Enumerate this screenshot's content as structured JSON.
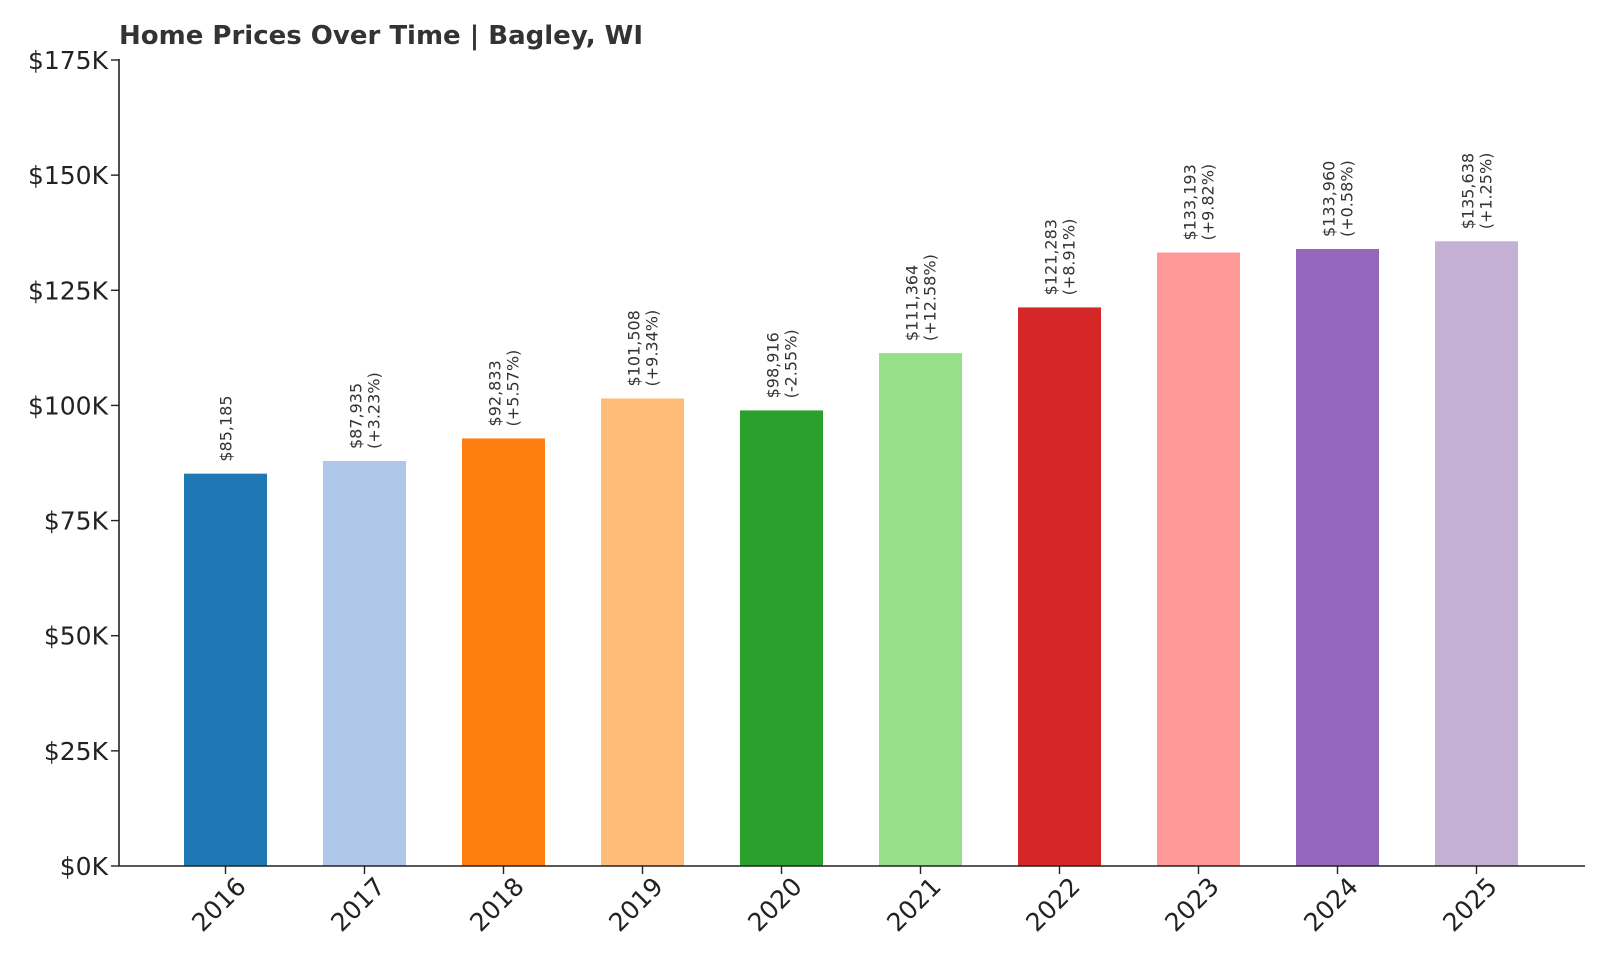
{
  "chart_data": {
    "type": "bar",
    "title": "Home Prices Over Time | Bagley, WI",
    "xlabel": "",
    "ylabel": "",
    "ylim": [
      0,
      175000
    ],
    "y_ticks": [
      0,
      25000,
      50000,
      75000,
      100000,
      125000,
      150000,
      175000
    ],
    "y_tick_labels": [
      "$0K",
      "$25K",
      "$50K",
      "$75K",
      "$100K",
      "$125K",
      "$150K",
      "$175K"
    ],
    "categories": [
      "2016",
      "2017",
      "2018",
      "2019",
      "2020",
      "2021",
      "2022",
      "2023",
      "2024",
      "2025"
    ],
    "values": [
      85185,
      87935,
      92833,
      101508,
      98916,
      111364,
      121283,
      133193,
      133960,
      135638
    ],
    "value_labels": [
      "$85,185",
      "$87,935",
      "$92,833",
      "$101,508",
      "$98,916",
      "$111,364",
      "$121,283",
      "$133,193",
      "$133,960",
      "$135,638"
    ],
    "change_labels": [
      "",
      "(+3.23%)",
      "(+5.57%)",
      "(+9.34%)",
      "(-2.55%)",
      "(+12.58%)",
      "(+8.91%)",
      "(+9.82%)",
      "(+0.58%)",
      "(+1.25%)"
    ],
    "colors": [
      "#1f77b4",
      "#aec7e8",
      "#ff7f0e",
      "#ffbb78",
      "#2ca02c",
      "#98df8a",
      "#d62728",
      "#ff9896",
      "#9467bd",
      "#c5b0d5"
    ],
    "grid": false,
    "legend": "none"
  }
}
